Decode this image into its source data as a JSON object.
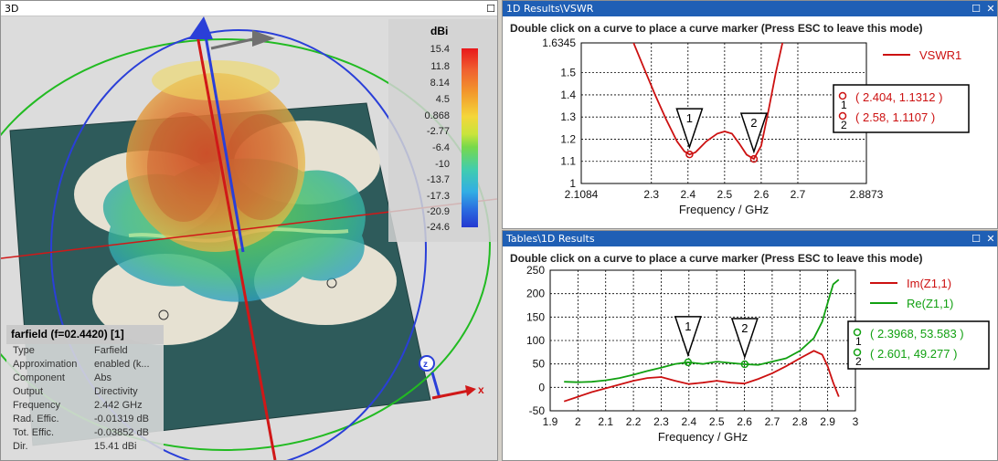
{
  "view3d": {
    "title": "3D",
    "colorbar": {
      "unit": "dBi",
      "labels": [
        "15.4",
        "11.8",
        "8.14",
        "4.5",
        "0.868",
        "-2.77",
        "-6.4",
        "-10",
        "-13.7",
        "-17.3",
        "-20.9",
        "-24.6"
      ]
    },
    "info": {
      "title": "farfield (f=02.4420) [1]",
      "rows": [
        {
          "key": "Type",
          "value": "Farfield"
        },
        {
          "key": "Approximation",
          "value": "enabled (k..."
        },
        {
          "key": "Component",
          "value": "Abs"
        },
        {
          "key": "Output",
          "value": "Directivity"
        },
        {
          "key": "Frequency",
          "value": "2.442 GHz"
        },
        {
          "key": "Rad. Effic.",
          "value": "-0.01319 dB"
        },
        {
          "key": "Tot. Effic.",
          "value": "-0.03852 dB"
        },
        {
          "key": "Dir.",
          "value": "15.41 dBi"
        }
      ]
    },
    "axes": {
      "x": "x",
      "z": "z"
    }
  },
  "vswr_window": {
    "title": "1D Results\\VSWR",
    "hint": "Double click on a curve to place a curve marker (Press ESC to leave this mode)",
    "legend": "VSWR1",
    "markers": [
      {
        "id": "1",
        "label": "( 2.404, 1.1312 )"
      },
      {
        "id": "2",
        "label": "( 2.58, 1.1107 )"
      }
    ],
    "xlabel": "Frequency / GHz"
  },
  "tables_window": {
    "title": "Tables\\1D Results",
    "hint": "Double click on a curve to place a curve marker (Press ESC to leave this mode)",
    "legend": [
      "Im(Z1,1)",
      "Re(Z1,1)"
    ],
    "markers": [
      {
        "id": "1",
        "label": "( 2.3968, 53.583 )"
      },
      {
        "id": "2",
        "label": "( 2.601, 49.277 )"
      }
    ],
    "xlabel": "Frequency / GHz"
  },
  "colors": {
    "vswr": "#cc1111",
    "im": "#cc1111",
    "re": "#11a011",
    "titlebar_active": "#1f5fb5"
  },
  "chart_data": [
    {
      "type": "line",
      "xlabel": "Frequency / GHz",
      "ylabel": "",
      "xlim": [
        2.1084,
        2.8873
      ],
      "ylim": [
        1,
        1.6345
      ],
      "xticks": [
        "2.1084",
        "2.3",
        "2.4",
        "2.5",
        "2.6",
        "2.7",
        "2.8873"
      ],
      "xtick_values": [
        2.1084,
        2.3,
        2.4,
        2.5,
        2.6,
        2.7,
        2.8873
      ],
      "yticks": [
        "1.6345",
        "1.5",
        "1.4",
        "1.3",
        "1.2",
        "1.1",
        "1"
      ],
      "ytick_values": [
        1.6345,
        1.5,
        1.4,
        1.3,
        1.2,
        1.1,
        1.0
      ],
      "series": [
        {
          "name": "VSWR1",
          "x": [
            2.25,
            2.28,
            2.31,
            2.34,
            2.37,
            2.39,
            2.404,
            2.42,
            2.45,
            2.48,
            2.5,
            2.52,
            2.54,
            2.56,
            2.58,
            2.6,
            2.62,
            2.64,
            2.66
          ],
          "y": [
            1.64,
            1.52,
            1.4,
            1.29,
            1.19,
            1.145,
            1.1312,
            1.14,
            1.19,
            1.225,
            1.235,
            1.225,
            1.18,
            1.13,
            1.1107,
            1.17,
            1.33,
            1.5,
            1.65
          ]
        }
      ],
      "markers": [
        {
          "x": 2.404,
          "y": 1.1312
        },
        {
          "x": 2.58,
          "y": 1.1107
        }
      ]
    },
    {
      "type": "line",
      "xlabel": "Frequency / GHz",
      "ylabel": "",
      "xlim": [
        1.9,
        3
      ],
      "ylim": [
        -50,
        250
      ],
      "xticks": [
        "1.9",
        "2",
        "2.1",
        "2.2",
        "2.3",
        "2.4",
        "2.5",
        "2.6",
        "2.7",
        "2.8",
        "2.9",
        "3"
      ],
      "xtick_values": [
        1.9,
        2.0,
        2.1,
        2.2,
        2.3,
        2.4,
        2.5,
        2.6,
        2.7,
        2.8,
        2.9,
        3.0
      ],
      "yticks": [
        "250",
        "200",
        "150",
        "100",
        "50",
        "0",
        "-50"
      ],
      "ytick_values": [
        250,
        200,
        150,
        100,
        50,
        0,
        -50
      ],
      "series": [
        {
          "name": "Im(Z1,1)",
          "x": [
            1.95,
            2.0,
            2.05,
            2.1,
            2.15,
            2.2,
            2.25,
            2.3,
            2.35,
            2.4,
            2.45,
            2.5,
            2.55,
            2.6,
            2.65,
            2.7,
            2.75,
            2.8,
            2.85,
            2.88,
            2.9,
            2.92,
            2.94
          ],
          "y": [
            -30,
            -20,
            -10,
            -2,
            6,
            14,
            20,
            22,
            14,
            7,
            10,
            14,
            10,
            8,
            18,
            30,
            45,
            62,
            78,
            70,
            45,
            10,
            -20
          ]
        },
        {
          "name": "Re(Z1,1)",
          "x": [
            1.95,
            2.0,
            2.05,
            2.1,
            2.15,
            2.2,
            2.25,
            2.3,
            2.35,
            2.3968,
            2.45,
            2.5,
            2.55,
            2.601,
            2.65,
            2.7,
            2.75,
            2.8,
            2.85,
            2.88,
            2.9,
            2.92,
            2.94
          ],
          "y": [
            12,
            11,
            12,
            15,
            20,
            27,
            35,
            42,
            50,
            53.583,
            50,
            55,
            52,
            49.277,
            48,
            55,
            62,
            78,
            105,
            140,
            180,
            220,
            230
          ]
        }
      ],
      "markers": [
        {
          "x": 2.3968,
          "y": 53.583
        },
        {
          "x": 2.601,
          "y": 49.277
        }
      ]
    }
  ]
}
